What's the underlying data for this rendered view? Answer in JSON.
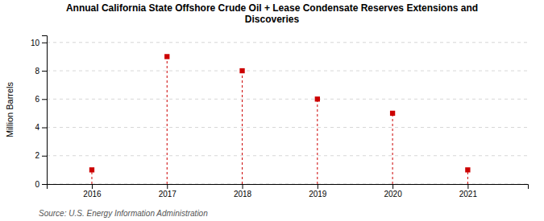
{
  "chart_data": {
    "type": "stem",
    "title": "Annual California State Offshore Crude Oil + Lease Condensate Reserves Extensions and\nDiscoveries",
    "ylabel": "Million Barrels",
    "annotations": [
      "Source: U.S. Energy Information Administration"
    ],
    "x": [
      2016,
      2017,
      2018,
      2019,
      2020,
      2021
    ],
    "values": [
      1.0,
      9.0,
      8.0,
      6.0,
      5.0,
      1.0
    ],
    "xlim": [
      2015.4,
      2021.8
    ],
    "xticks": [
      2016,
      2017,
      2018,
      2019,
      2020,
      2021
    ],
    "ylim": [
      0,
      10.5
    ],
    "yticks": [
      0,
      2,
      4,
      6,
      8,
      10
    ],
    "grid": true,
    "color": "#cc0000",
    "marker": "square",
    "line_style": "dashed"
  }
}
